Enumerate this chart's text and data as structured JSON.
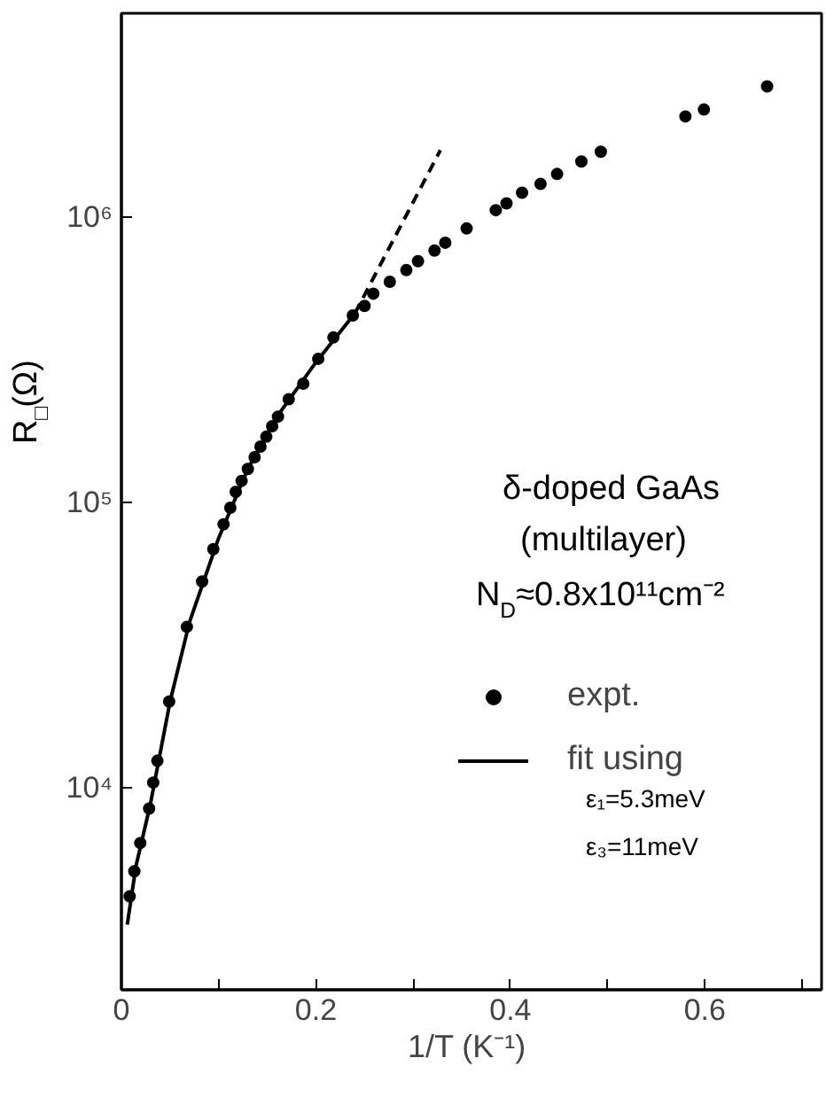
{
  "chart_data": {
    "type": "scatter",
    "xlabel": "1/T  (K⁻¹)",
    "ylabel": "R$_{□}$(Ω)",
    "log": "y",
    "xlim": [
      0,
      0.72
    ],
    "ylim": [
      1950,
      5200000
    ],
    "xticks": [
      0,
      {
        "value": 0.1,
        "label": null
      },
      {
        "value": 0.2,
        "label": "0.2"
      },
      {
        "value": 0.3,
        "label": null
      },
      {
        "value": 0.4,
        "label": "0.4"
      },
      {
        "value": 0.5,
        "label": null
      },
      {
        "value": 0.6,
        "label": "0.6"
      },
      {
        "value": 0.7,
        "label": null
      }
    ],
    "yticks": [
      {
        "value": 10000,
        "label": "10⁴"
      },
      {
        "value": 100000,
        "label": "10⁵"
      },
      {
        "value": 1000000,
        "label": "10⁶"
      }
    ],
    "legend": "right",
    "grid": false,
    "annotations": [
      "δ-doped  GaAs",
      "(multilayer)",
      "N$_{D}$≈0.8x10¹¹cm⁻²",
      "ε₁=5.3meV",
      "ε₃=11meV"
    ],
    "series": [
      {
        "name": "expt.",
        "type": "scatter",
        "marker": "circle",
        "color": "#000000",
        "x": [
          0.0085,
          0.0133,
          0.0194,
          0.0285,
          0.0327,
          0.037,
          0.0491,
          0.0673,
          0.083,
          0.0945,
          0.105,
          0.112,
          0.1176,
          0.1236,
          0.13,
          0.137,
          0.143,
          0.149,
          0.155,
          0.161,
          0.172,
          0.187,
          0.2024,
          0.218,
          0.238,
          0.25,
          0.259,
          0.276,
          0.293,
          0.305,
          0.322,
          0.333,
          0.355,
          0.385,
          0.396,
          0.412,
          0.431,
          0.448,
          0.473,
          0.493,
          0.58,
          0.599,
          0.664
        ],
        "values": [
          4150,
          5080,
          6380,
          8430,
          10400,
          12400,
          20000,
          36600,
          52800,
          68500,
          83800,
          95800,
          109000,
          119000,
          131000,
          144000,
          157000,
          170000,
          185000,
          200000,
          230000,
          261000,
          319000,
          379000,
          453000,
          489000,
          540000,
          594000,
          653000,
          702000,
          765000,
          815000,
          914000,
          1060000,
          1120000,
          1220000,
          1310000,
          1420000,
          1570000,
          1700000,
          2260000,
          2390000,
          2880000
        ]
      },
      {
        "name": "fit using",
        "type": "line",
        "line_style": "solid",
        "color": "#000000",
        "x": [
          0.006,
          0.015,
          0.03,
          0.05,
          0.07,
          0.1,
          0.13,
          0.16,
          0.2,
          0.24
        ],
        "values": [
          3300,
          5300,
          8800,
          20000,
          38000,
          75000,
          131000,
          200000,
          310000,
          460000
        ]
      },
      {
        "type": "line",
        "line_style": "dashed",
        "color": "#000000",
        "x": [
          0.24,
          0.328
        ],
        "values": [
          460000,
          1720000
        ]
      }
    ]
  }
}
